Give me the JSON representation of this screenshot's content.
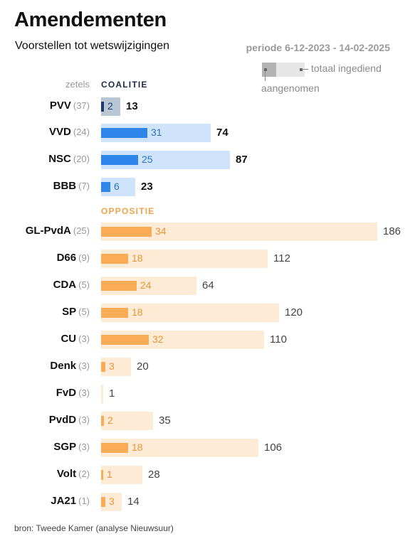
{
  "title": "Amendementen",
  "subtitle": "Voorstellen tot wetswijzigingen",
  "period": "periode 6-12-2023 - 14-02-2025",
  "legend": {
    "total": "totaal ingediend",
    "accepted": "aangenomen"
  },
  "zetels_label": "zetels",
  "sections": {
    "coalition": "COALITIE",
    "opposition": "OPPOSITIE"
  },
  "source": "bron: Tweede Kamer (analyse Nieuwsuur)",
  "colors": {
    "coalition_total": "#cfe3fb",
    "coalition_accepted": "#2f86ea",
    "pvv_total": "#b9c6d4",
    "pvv_accepted": "#1c3a6b",
    "opposition_total": "#fdebd6",
    "opposition_accepted": "#f9ab55",
    "coalition_accepted_text": "#2b74c9",
    "pvv_accepted_text": "#1c3a6b",
    "opposition_accepted_text": "#e89535",
    "coalition_total_text": "#111111",
    "opposition_total_text": "#444444"
  },
  "chart_data": {
    "type": "bar",
    "orientation": "horizontal",
    "categories": [
      "PVV",
      "VVD",
      "NSC",
      "BBB",
      "GL-PvdA",
      "D66",
      "CDA",
      "SP",
      "CU",
      "Denk",
      "FvD",
      "PvdD",
      "SGP",
      "Volt",
      "JA21"
    ],
    "seats": [
      "(37)",
      "(24)",
      "(20)",
      "(7)",
      "(25)",
      "(9)",
      "(5)",
      "(5)",
      "(3)",
      "(3)",
      "(3)",
      "(3)",
      "(3)",
      "(2)",
      "(1)"
    ],
    "group": [
      "coalitie",
      "coalitie",
      "coalitie",
      "coalitie",
      "oppositie",
      "oppositie",
      "oppositie",
      "oppositie",
      "oppositie",
      "oppositie",
      "oppositie",
      "oppositie",
      "oppositie",
      "oppositie",
      "oppositie"
    ],
    "series": [
      {
        "name": "totaal ingediend",
        "values": [
          13,
          74,
          87,
          23,
          186,
          112,
          64,
          120,
          110,
          20,
          1,
          35,
          106,
          28,
          14
        ]
      },
      {
        "name": "aangenomen",
        "values": [
          2,
          31,
          25,
          6,
          34,
          18,
          24,
          18,
          32,
          3,
          0,
          2,
          18,
          1,
          3
        ]
      }
    ],
    "xlim": [
      0,
      186
    ]
  }
}
